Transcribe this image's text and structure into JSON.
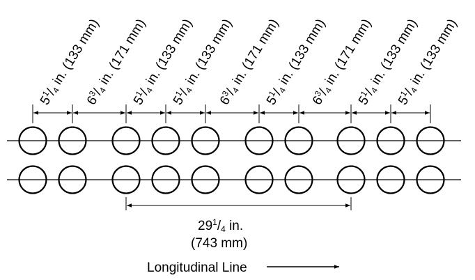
{
  "spacing_labels": [
    {
      "whole": "5",
      "num": "1",
      "den": "4",
      "rest": " in. (133 mm)"
    },
    {
      "whole": "6",
      "num": "3",
      "den": "4",
      "rest": " in. (171 mm)"
    },
    {
      "whole": "5",
      "num": "1",
      "den": "4",
      "rest": " in. (133 mm)"
    },
    {
      "whole": "5",
      "num": "1",
      "den": "4",
      "rest": " in. (133 mm)"
    },
    {
      "whole": "6",
      "num": "3",
      "den": "4",
      "rest": " in. (171 mm)"
    },
    {
      "whole": "5",
      "num": "1",
      "den": "4",
      "rest": " in. (133 mm)"
    },
    {
      "whole": "6",
      "num": "3",
      "den": "4",
      "rest": " in. (171 mm)"
    },
    {
      "whole": "5",
      "num": "1",
      "den": "4",
      "rest": " in. (133 mm)"
    },
    {
      "whole": "5",
      "num": "1",
      "den": "4",
      "rest": " in. (133 mm)"
    }
  ],
  "total_label": {
    "whole": "29",
    "num": "1",
    "den": "4",
    "rest": " in.",
    "metric": "(743 mm)"
  },
  "direction_label": "Longitudinal Line"
}
